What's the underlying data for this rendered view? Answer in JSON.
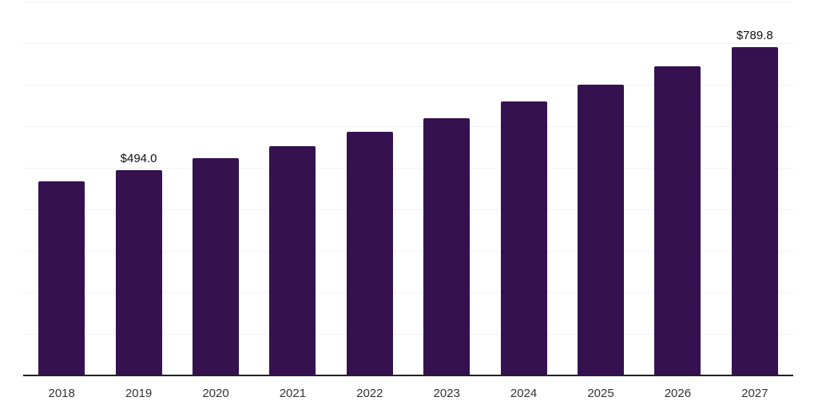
{
  "chart_data": {
    "type": "bar",
    "title": "",
    "xlabel": "",
    "ylabel": "",
    "categories": [
      "2018",
      "2019",
      "2020",
      "2021",
      "2022",
      "2023",
      "2024",
      "2025",
      "2026",
      "2027"
    ],
    "values": [
      466,
      494.0,
      522,
      552,
      585,
      619,
      658,
      699,
      743,
      789.8
    ],
    "ylim": [
      0,
      900
    ],
    "grid_step": 100,
    "grid": "on",
    "legend": "none",
    "annotations": [
      {
        "category": "2019",
        "text": "$494.0"
      },
      {
        "category": "2027",
        "text": "$789.8"
      }
    ],
    "colors": {
      "bar": "#351150",
      "gridline": "#f1f1f3",
      "axis": "#222222",
      "tick_label": "#333333",
      "annotation": "#111111",
      "background": "#ffffff"
    }
  }
}
